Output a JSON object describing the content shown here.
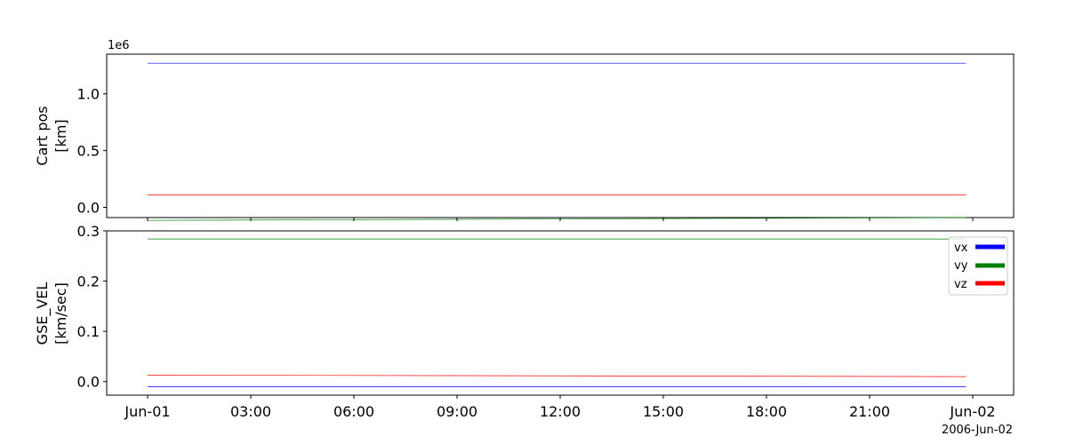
{
  "chart_data": [
    {
      "type": "line",
      "ylabel_lines": [
        "Cart pos",
        "[km]"
      ],
      "offset_text": "1e6",
      "x_range": [
        "2006-06-01T00:00",
        "2006-06-02T00:00"
      ],
      "ylim": [
        -0.09,
        1.35
      ],
      "y_ticks": [
        0.0,
        0.5,
        1.0
      ],
      "y_tick_labels": [
        "0.0",
        "0.5",
        "1.0"
      ],
      "grid": false,
      "series": [
        {
          "color": "#0000ff",
          "x": [
            "2006-06-01T00:00",
            "2006-06-01T23:48"
          ],
          "y": [
            1.27,
            1.27
          ]
        },
        {
          "color": "#008000",
          "x": [
            "2006-06-01T00:00",
            "2006-06-01T23:48"
          ],
          "y": [
            -0.115,
            -0.09
          ]
        },
        {
          "color": "#ff0000",
          "x": [
            "2006-06-01T00:00",
            "2006-06-01T23:48"
          ],
          "y": [
            0.11,
            0.11
          ]
        }
      ]
    },
    {
      "type": "line",
      "ylabel_lines": [
        "GSE_VEL",
        "[km/sec]"
      ],
      "x_range": [
        "2006-06-01T00:00",
        "2006-06-02T00:00"
      ],
      "ylim": [
        -0.027,
        0.3
      ],
      "y_ticks": [
        0.0,
        0.1,
        0.2,
        0.3
      ],
      "y_tick_labels": [
        "0.0",
        "0.1",
        "0.2",
        "0.3"
      ],
      "grid": false,
      "legend_position": "top-right",
      "series": [
        {
          "name": "vx",
          "color": "#0000ff",
          "x": [
            "2006-06-01T00:00",
            "2006-06-01T23:48"
          ],
          "y": [
            -0.01,
            -0.01
          ]
        },
        {
          "name": "vy",
          "color": "#008000",
          "x": [
            "2006-06-01T00:00",
            "2006-06-01T23:48"
          ],
          "y": [
            0.284,
            0.284
          ]
        },
        {
          "name": "vz",
          "color": "#ff0000",
          "x": [
            "2006-06-01T00:00",
            "2006-06-01T23:48"
          ],
          "y": [
            0.013,
            0.01
          ]
        }
      ]
    }
  ],
  "x_axis": {
    "tick_labels": [
      "Jun-01",
      "03:00",
      "06:00",
      "09:00",
      "12:00",
      "15:00",
      "18:00",
      "21:00",
      "Jun-02"
    ],
    "tick_times": [
      "2006-06-01T00:00",
      "2006-06-01T03:00",
      "2006-06-01T06:00",
      "2006-06-01T09:00",
      "2006-06-01T12:00",
      "2006-06-01T15:00",
      "2006-06-01T18:00",
      "2006-06-01T21:00",
      "2006-06-02T00:00"
    ],
    "offset_label": "2006-Jun-02"
  }
}
